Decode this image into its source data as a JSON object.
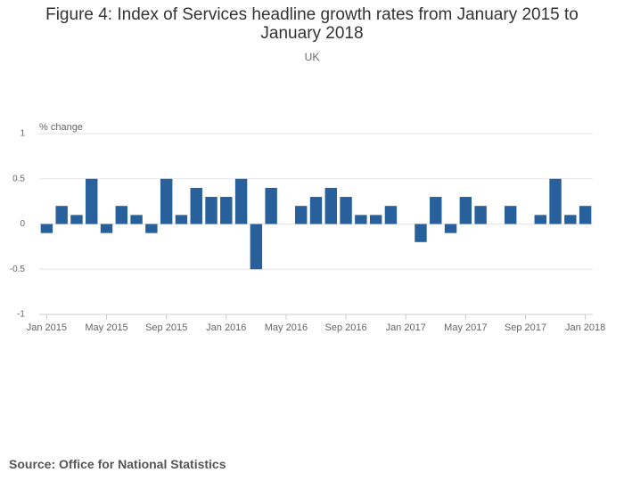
{
  "chart_data": {
    "type": "bar",
    "title": "Figure 4: Index of Services headline growth rates from January 2015 to January 2018",
    "subtitle": "UK",
    "y_label": "% change",
    "source": "Source: Office for National Statistics",
    "categories": [
      "Jan 2015",
      null,
      null,
      null,
      "May 2015",
      null,
      null,
      null,
      "Sep 2015",
      null,
      null,
      null,
      "Jan 2016",
      null,
      null,
      null,
      "May 2016",
      null,
      null,
      null,
      "Sep 2016",
      null,
      null,
      null,
      "Jan 2017",
      null,
      null,
      null,
      "May 2017",
      null,
      null,
      null,
      "Sep 2017",
      null,
      null,
      null,
      "Jan 2018"
    ],
    "values": [
      -0.1,
      0.2,
      0.1,
      0.5,
      -0.1,
      0.2,
      0.1,
      -0.1,
      0.5,
      0.1,
      0.4,
      0.3,
      0.3,
      0.5,
      -0.5,
      0.4,
      0,
      0.2,
      0.3,
      0.4,
      0.3,
      0.1,
      0.1,
      0.2,
      0,
      -0.2,
      0.3,
      -0.1,
      0.3,
      0.2,
      0,
      0.2,
      0,
      0.1,
      0.5,
      0.1,
      0.2
    ],
    "color": "#27609b",
    "ylim": [
      -1,
      1
    ],
    "yticks": [
      1,
      0.5,
      0,
      -0.5,
      -1
    ],
    "grid": true
  }
}
